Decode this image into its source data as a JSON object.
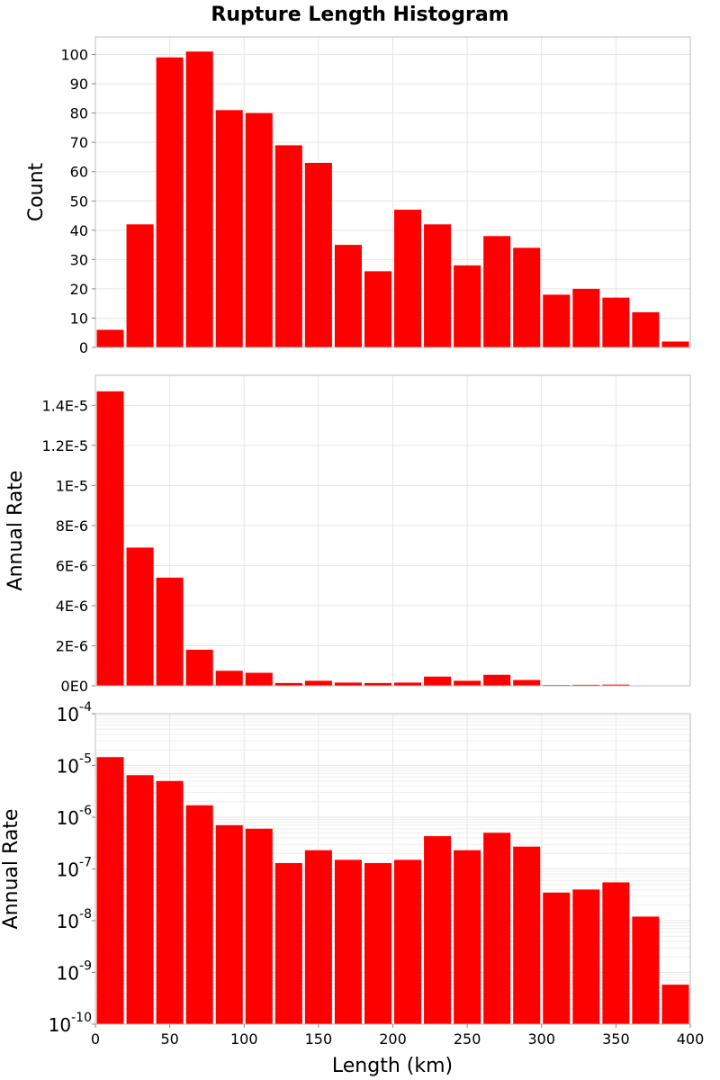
{
  "chart_data": {
    "type": "bar",
    "title": "Rupture Length Histogram",
    "xlabel": "Length (km)",
    "xlim": [
      0,
      400
    ],
    "bin_width": 20,
    "x": [
      10,
      30,
      50,
      70,
      90,
      110,
      130,
      150,
      170,
      190,
      210,
      230,
      250,
      270,
      290,
      310,
      330,
      350,
      370,
      390
    ],
    "xticks": [
      "0",
      "50",
      "100",
      "150",
      "200",
      "250",
      "300",
      "350",
      "400"
    ],
    "colors": {
      "bar": "#ff0000"
    },
    "panels": [
      {
        "ylabel": "Count",
        "yscale": "linear",
        "ylim": [
          0,
          106
        ],
        "yticks": [
          "0",
          "10",
          "20",
          "30",
          "40",
          "50",
          "60",
          "70",
          "80",
          "90",
          "100"
        ],
        "values": [
          6,
          42,
          99,
          101,
          81,
          80,
          69,
          63,
          35,
          26,
          47,
          42,
          28,
          38,
          34,
          18,
          20,
          17,
          12,
          2
        ]
      },
      {
        "ylabel": "Annual Rate",
        "yscale": "linear",
        "ylim": [
          0,
          1.55e-05
        ],
        "yticks": [
          "0E0",
          "2E-6",
          "4E-6",
          "6E-6",
          "8E-6",
          "1E-5",
          "1.2E-5",
          "1.4E-5"
        ],
        "values": [
          1.47e-05,
          6.9e-06,
          5.4e-06,
          1.8e-06,
          7.5e-07,
          6.5e-07,
          1.4e-07,
          2.5e-07,
          1.6e-07,
          1.4e-07,
          1.6e-07,
          4.6e-07,
          2.5e-07,
          5.5e-07,
          2.9e-07,
          4e-08,
          5e-08,
          6e-08,
          1.3e-08,
          6e-10
        ]
      },
      {
        "ylabel": "Annual Rate",
        "yscale": "log",
        "ylim": [
          1e-10,
          0.0001
        ],
        "yticks": [
          {
            "base": "10",
            "exp": "-10"
          },
          {
            "base": "10",
            "exp": "-9"
          },
          {
            "base": "10",
            "exp": "-8"
          },
          {
            "base": "10",
            "exp": "-7"
          },
          {
            "base": "10",
            "exp": "-6"
          },
          {
            "base": "10",
            "exp": "-5"
          },
          {
            "base": "10",
            "exp": "-4"
          }
        ],
        "values": [
          1.45e-05,
          6.5e-06,
          5e-06,
          1.7e-06,
          7e-07,
          6e-07,
          1.3e-07,
          2.3e-07,
          1.5e-07,
          1.3e-07,
          1.5e-07,
          4.3e-07,
          2.3e-07,
          5e-07,
          2.7e-07,
          3.5e-08,
          4e-08,
          5.5e-08,
          1.2e-08,
          5.8e-10
        ]
      }
    ]
  }
}
